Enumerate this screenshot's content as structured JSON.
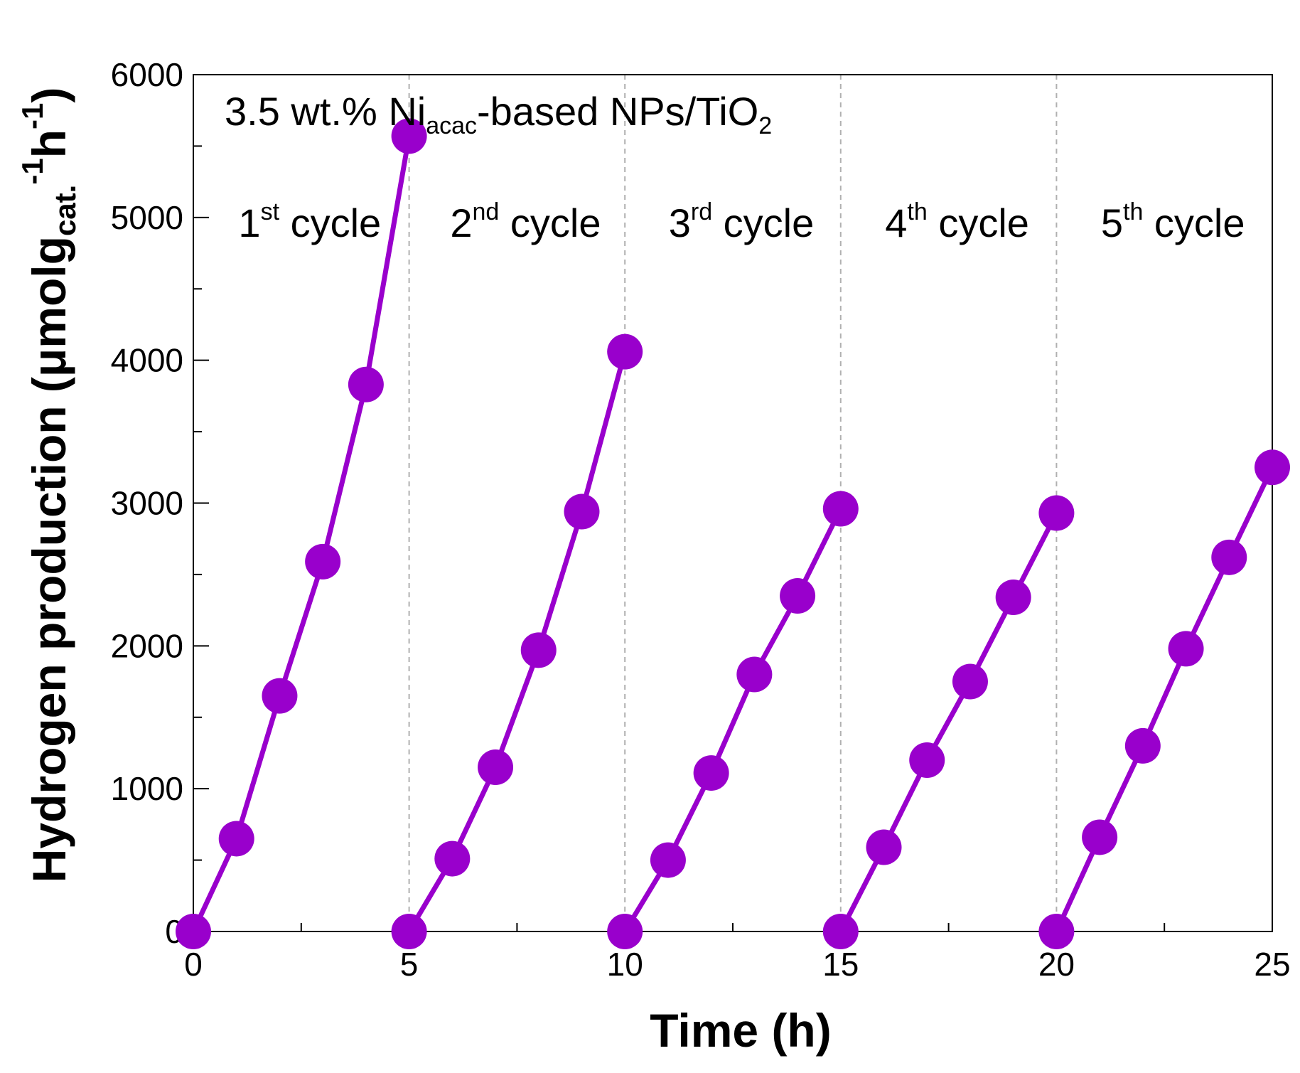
{
  "chart_data": {
    "type": "line",
    "title": "",
    "annotation": {
      "prefix": "3.5 wt.% Ni",
      "sub1": "acac",
      "middle": "-based NPs/TiO",
      "sub2": "2"
    },
    "xlabel": "Time (h)",
    "ylabel": {
      "main": "Hydrogen production (μmolg",
      "sub": "cat.",
      "sup1": "-1",
      "mid": "h",
      "sup2": "-1",
      "close": ")"
    },
    "xlim": [
      0,
      25
    ],
    "ylim": [
      0,
      6000
    ],
    "xticks": [
      0,
      5,
      10,
      15,
      20,
      25
    ],
    "yticks": [
      0,
      1000,
      2000,
      3000,
      4000,
      5000,
      6000
    ],
    "grid": false,
    "cycle_dividers": [
      5,
      10,
      15,
      20
    ],
    "cycles": [
      {
        "num": "1",
        "sup": "st",
        "word": " cycle",
        "x_center": 2.5
      },
      {
        "num": "2",
        "sup": "nd",
        "word": " cycle",
        "x_center": 7.5
      },
      {
        "num": "3",
        "sup": "rd",
        "word": " cycle",
        "x_center": 12.5
      },
      {
        "num": "4",
        "sup": "th",
        "word": " cycle",
        "x_center": 17.5
      },
      {
        "num": "5",
        "sup": "th",
        "word": " cycle",
        "x_center": 22.5
      }
    ],
    "color": "#9900cc",
    "series": [
      {
        "name": "1st cycle",
        "x": [
          0,
          1,
          2,
          3,
          4,
          5
        ],
        "y": [
          0,
          650,
          1650,
          2590,
          3830,
          5570
        ]
      },
      {
        "name": "2nd cycle",
        "x": [
          5,
          6,
          7,
          8,
          9,
          10
        ],
        "y": [
          0,
          510,
          1150,
          1970,
          2940,
          4060
        ]
      },
      {
        "name": "3rd cycle",
        "x": [
          10,
          11,
          12,
          13,
          14,
          15
        ],
        "y": [
          0,
          500,
          1110,
          1800,
          2350,
          2960
        ]
      },
      {
        "name": "4th cycle",
        "x": [
          15,
          16,
          17,
          18,
          19,
          20
        ],
        "y": [
          0,
          590,
          1200,
          1750,
          2340,
          2930
        ]
      },
      {
        "name": "5th cycle",
        "x": [
          20,
          21,
          22,
          23,
          24,
          25
        ],
        "y": [
          0,
          660,
          1300,
          1980,
          2620,
          3250
        ]
      }
    ]
  }
}
